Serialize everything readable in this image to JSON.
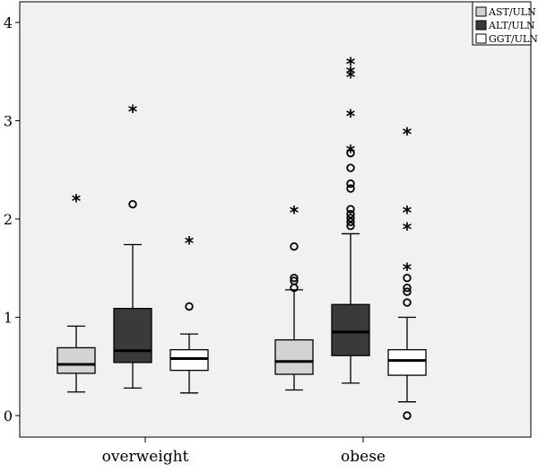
{
  "chart_data": {
    "type": "boxplot",
    "title": "",
    "xlabel": "",
    "ylabel": "",
    "ylim": [
      -0.2,
      4.2
    ],
    "yticks": [
      0,
      1,
      2,
      3,
      4
    ],
    "ytick_labels": [
      "0",
      "1",
      "2",
      "3",
      "4"
    ],
    "grid": false,
    "legend": "top-right",
    "categories": [
      "overweight",
      "obese"
    ],
    "series": [
      {
        "name": "AST/ULN",
        "color": "#d3d3d3",
        "boxes": [
          {
            "whisker_low": 0.24,
            "q1": 0.43,
            "median": 0.52,
            "q3": 0.69,
            "whisker_high": 0.91,
            "outliers_circle": [],
            "outliers_star": [
              2.22
            ]
          },
          {
            "whisker_low": 0.26,
            "q1": 0.42,
            "median": 0.55,
            "q3": 0.77,
            "whisker_high": 1.28,
            "outliers_circle": [
              1.3,
              1.37,
              1.4,
              1.72
            ],
            "outliers_star": [
              2.1
            ]
          }
        ]
      },
      {
        "name": "ALT/ULN",
        "color": "#3a3a3a",
        "boxes": [
          {
            "whisker_low": 0.28,
            "q1": 0.54,
            "median": 0.66,
            "q3": 1.09,
            "whisker_high": 1.74,
            "outliers_circle": [
              2.15
            ],
            "outliers_star": [
              3.13
            ]
          },
          {
            "whisker_low": 0.33,
            "q1": 0.61,
            "median": 0.85,
            "q3": 1.13,
            "whisker_high": 1.85,
            "outliers_circle": [
              1.93,
              1.97,
              2.01,
              2.05,
              2.1,
              2.31,
              2.36,
              2.52,
              2.67
            ],
            "outliers_star": [
              2.72,
              3.08,
              3.48,
              3.52,
              3.61
            ]
          }
        ]
      },
      {
        "name": "GGT/ULN",
        "color": "#ffffff",
        "boxes": [
          {
            "whisker_low": 0.23,
            "q1": 0.46,
            "median": 0.58,
            "q3": 0.67,
            "whisker_high": 0.83,
            "outliers_circle": [
              1.11
            ],
            "outliers_star": [
              1.79
            ]
          },
          {
            "whisker_low": 0.14,
            "q1": 0.41,
            "median": 0.56,
            "q3": 0.67,
            "whisker_high": 1.0,
            "outliers_circle": [
              0.0,
              1.15,
              1.26,
              1.3,
              1.4
            ],
            "outliers_star": [
              1.52,
              1.93,
              2.1,
              2.9
            ]
          }
        ]
      }
    ]
  }
}
